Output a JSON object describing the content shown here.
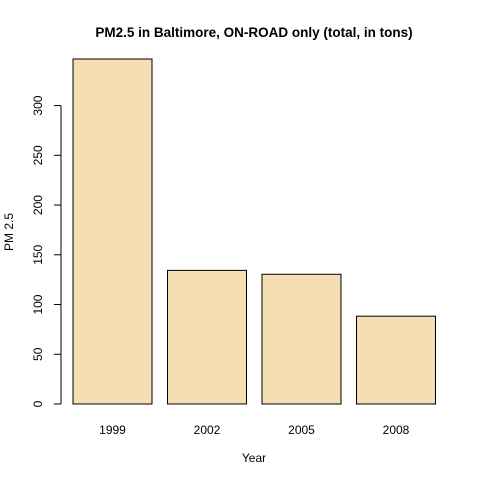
{
  "chart_data": {
    "type": "bar",
    "title": "PM2.5 in Baltimore, ON-ROAD only (total, in tons)",
    "xlabel": "Year",
    "ylabel": "PM 2.5",
    "categories": [
      "1999",
      "2002",
      "2005",
      "2008"
    ],
    "values": [
      346.82,
      134.31,
      130.43,
      88.28
    ],
    "ylim": [
      0,
      346.82
    ],
    "yticks": [
      0,
      50,
      100,
      150,
      200,
      250,
      300
    ],
    "bar_color": "#f5deb3",
    "bar_border_color": "#000000",
    "grid": false,
    "legend": "none"
  }
}
